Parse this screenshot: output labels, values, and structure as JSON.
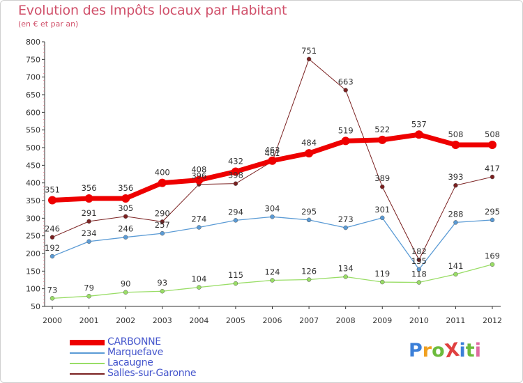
{
  "title": "Evolution des Impôts locaux par Habitant",
  "subtitle": "(en € et par an)",
  "logo": {
    "text": "ProXiti",
    "letters": [
      "P",
      "r",
      "o",
      "X",
      "i",
      "t",
      "i"
    ],
    "colors": [
      "#3b7fd8",
      "#f0a020",
      "#6cbb3c",
      "#e04040",
      "#3b7fd8",
      "#6cbb3c",
      "#e06aa0"
    ]
  },
  "colors": {
    "title": "#d0506a",
    "axis": "#333333",
    "grid_tick": "#e07080",
    "legend_text": "#4455cc"
  },
  "chart_data": {
    "type": "line",
    "title": "Evolution des Impôts locaux par Habitant",
    "subtitle": "(en € et par an)",
    "xlabel": "",
    "ylabel": "",
    "x": [
      "2000",
      "2001",
      "2002",
      "2003",
      "2004",
      "2005",
      "2006",
      "2007",
      "2008",
      "2009",
      "2010",
      "2011",
      "2012"
    ],
    "ylim": [
      50,
      800
    ],
    "yticks": [
      50,
      100,
      150,
      200,
      250,
      300,
      350,
      400,
      450,
      500,
      550,
      600,
      650,
      700,
      750,
      800
    ],
    "legend_position": "bottom-left",
    "series": [
      {
        "name": "CARBONNE",
        "color": "#ee0000",
        "width": 7,
        "marker": 6,
        "values": [
          351,
          356,
          356,
          400,
          408,
          432,
          463,
          484,
          519,
          522,
          537,
          508,
          508
        ]
      },
      {
        "name": "Marquefave",
        "color": "#5b9bd5",
        "width": 1.3,
        "marker": 3,
        "values": [
          192,
          234,
          246,
          257,
          274,
          294,
          304,
          295,
          273,
          301,
          155,
          288,
          295
        ]
      },
      {
        "name": "Lacaugne",
        "color": "#99dd66",
        "width": 1.3,
        "marker": 3,
        "values": [
          73,
          79,
          90,
          93,
          104,
          115,
          124,
          126,
          134,
          119,
          118,
          141,
          169
        ]
      },
      {
        "name": "Salles-sur-Garonne",
        "color": "#7a2020",
        "width": 1,
        "marker": 3,
        "values": [
          246,
          291,
          305,
          290,
          396,
          398,
          461,
          751,
          663,
          389,
          182,
          393,
          417
        ]
      }
    ],
    "data_labels": {
      "CARBONNE": [
        "351",
        "356",
        "356",
        "400",
        "408",
        "432",
        "463",
        "484",
        "519",
        "522",
        "537",
        "508",
        "508"
      ],
      "Marquefave": [
        "192",
        "234",
        "246",
        "257",
        "274",
        "294",
        "304",
        "295",
        "273",
        "301",
        "155",
        "288",
        "295"
      ],
      "Lacaugne": [
        "73",
        "79",
        "90",
        "93",
        "104",
        "115",
        "124",
        "126",
        "134",
        "119",
        "118",
        "141",
        "169"
      ],
      "Salles-sur-Garonne": [
        "246",
        "291",
        "305",
        "290",
        "396",
        "398",
        "461",
        "751",
        "663",
        "389",
        "182",
        "393",
        "417"
      ]
    }
  }
}
